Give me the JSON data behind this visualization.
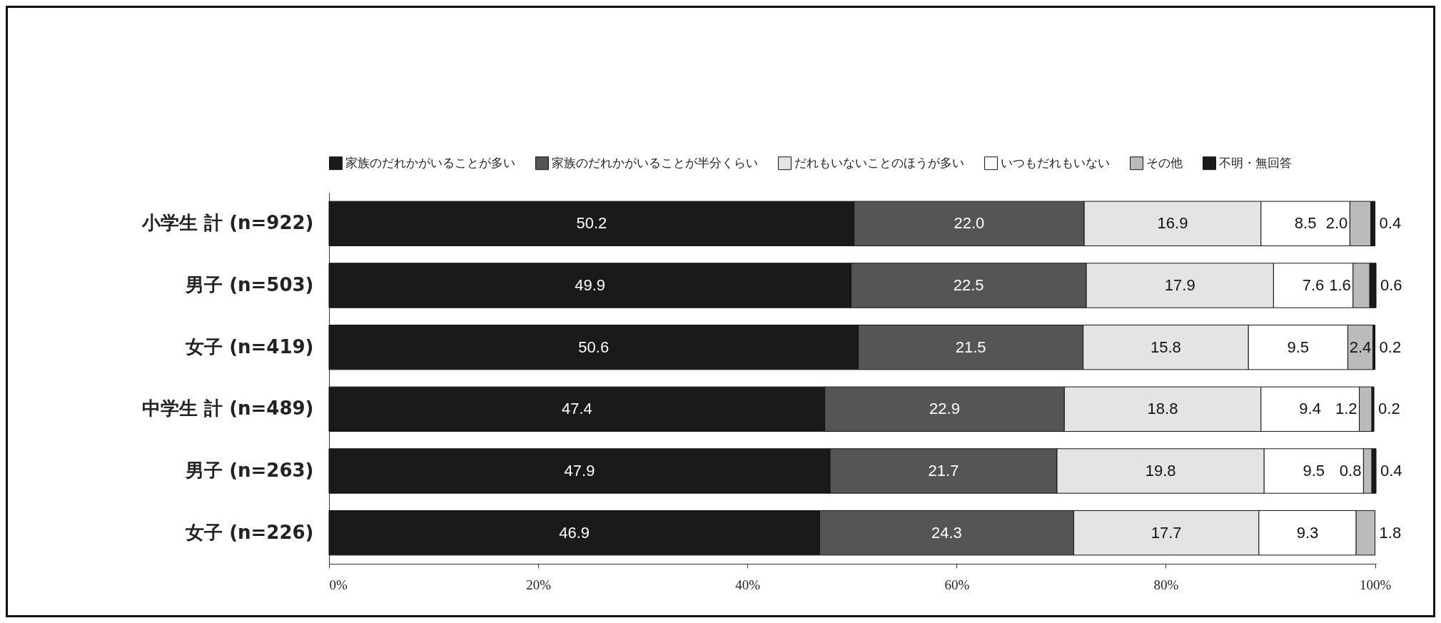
{
  "chart_data": {
    "type": "bar",
    "orientation": "horizontal",
    "stacked": true,
    "categories": [
      "小学生 計 (n=922)",
      "男子 (n=503)",
      "女子 (n=419)",
      "中学生 計 (n=489)",
      "男子 (n=263)",
      "女子 (n=226)"
    ],
    "series": [
      {
        "name": "家族のだれかがいることが多い",
        "color": "#1a1a1a",
        "values": [
          50.2,
          49.9,
          50.6,
          47.4,
          47.9,
          46.9
        ],
        "value_labels": [
          "50.2",
          "49.9",
          "50.6",
          "47.4",
          "47.9",
          "46.9"
        ]
      },
      {
        "name": "家族のだれかがいることが半分くらい",
        "color": "#555555",
        "values": [
          22.0,
          22.5,
          21.5,
          22.9,
          21.7,
          24.3
        ],
        "value_labels": [
          "22.0",
          "22.5",
          "21.5",
          "22.9",
          "21.7",
          "24.3"
        ]
      },
      {
        "name": "だれもいないことのほうが多い",
        "color": "#e4e4e4",
        "values": [
          16.9,
          17.9,
          15.8,
          18.8,
          19.8,
          17.7
        ],
        "value_labels": [
          "16.9",
          "17.9",
          "15.8",
          "18.8",
          "19.8",
          "17.7"
        ]
      },
      {
        "name": "いつもだれもいない",
        "color": "#ffffff",
        "values": [
          8.5,
          7.6,
          9.5,
          9.4,
          9.5,
          9.3
        ],
        "value_labels": [
          "8.5",
          "7.6",
          "9.5",
          "9.4",
          "9.5",
          "9.3"
        ]
      },
      {
        "name": "その他",
        "color": "#bbbbbb",
        "values": [
          2.0,
          1.6,
          2.4,
          1.2,
          0.8,
          1.8
        ],
        "value_labels": [
          "2.0",
          "1.6",
          "2.4",
          "1.2",
          "0.8",
          "1.8"
        ]
      },
      {
        "name": "不明・無回答",
        "color": "#1a1a1a",
        "values": [
          0.4,
          0.6,
          0.2,
          0.2,
          0.4,
          null
        ],
        "value_labels": [
          "0.4",
          "0.6",
          "0.2",
          "0.2",
          "0.4",
          null
        ]
      }
    ],
    "xlim": [
      0,
      100.1
    ],
    "xticks": [
      {
        "value": 0,
        "label": "0%"
      },
      {
        "value": 20,
        "label": "20%"
      },
      {
        "value": 40,
        "label": "40%"
      },
      {
        "value": 60,
        "label": "60%"
      },
      {
        "value": 80,
        "label": "80%"
      },
      {
        "value": 100,
        "label": "100%"
      }
    ],
    "legend": "top"
  }
}
